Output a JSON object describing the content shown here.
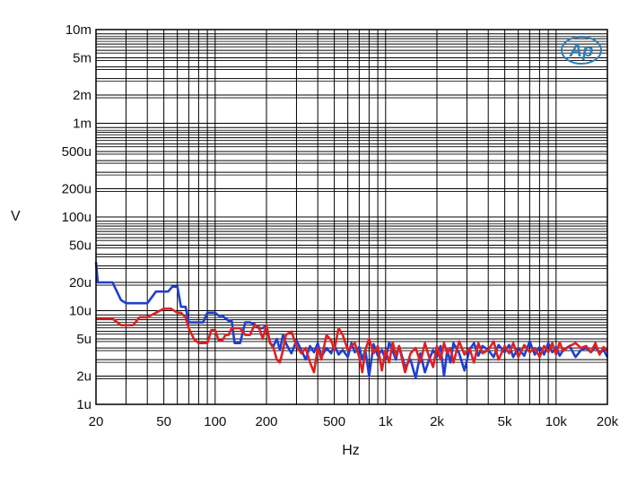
{
  "chart_data": {
    "type": "line",
    "xlabel": "Hz",
    "ylabel": "V",
    "x_scale": "log",
    "y_scale": "log",
    "xlim": [
      20,
      20000
    ],
    "ylim": [
      1e-06,
      0.01
    ],
    "x_tick_labels": [
      "20",
      "50",
      "100",
      "200",
      "500",
      "1k",
      "2k",
      "5k",
      "10k",
      "20k"
    ],
    "x_tick_values": [
      20,
      50,
      100,
      200,
      500,
      1000,
      2000,
      5000,
      10000,
      20000
    ],
    "y_tick_labels": [
      "10m",
      "5m",
      "2m",
      "1m",
      "500u",
      "200u",
      "100u",
      "50u",
      "20u",
      "10u",
      "5u",
      "2u",
      "1u"
    ],
    "y_tick_values": [
      0.01,
      0.005,
      0.002,
      0.001,
      0.0005,
      0.0002,
      0.0001,
      5e-05,
      2e-05,
      1e-05,
      5e-06,
      2e-06,
      1e-06
    ],
    "grid": true,
    "logo_text": "Ap",
    "series": [
      {
        "color": "#1f3fd0",
        "x": [
          20,
          20.5,
          22,
          25,
          28,
          30,
          33,
          36,
          40,
          45,
          50,
          53,
          56,
          60,
          63,
          67,
          70,
          75,
          80,
          85,
          90,
          95,
          100,
          105,
          110,
          120,
          125,
          130,
          140,
          150,
          160,
          170,
          180,
          190,
          200,
          210,
          220,
          230,
          240,
          250,
          260,
          280,
          300,
          320,
          340,
          360,
          380,
          400,
          420,
          450,
          480,
          500,
          530,
          560,
          600,
          630,
          660,
          700,
          730,
          760,
          800,
          850,
          900,
          950,
          1000,
          1050,
          1100,
          1150,
          1200,
          1300,
          1400,
          1500,
          1600,
          1700,
          1800,
          1900,
          2000,
          2100,
          2200,
          2300,
          2400,
          2500,
          2700,
          2900,
          3100,
          3300,
          3500,
          3700,
          4000,
          4300,
          4600,
          5000,
          5300,
          5600,
          6000,
          6500,
          7000,
          7500,
          8000,
          8500,
          9000,
          9500,
          10000,
          10500,
          11000,
          12000,
          13000,
          14000,
          15000,
          16000,
          17000,
          18000,
          19000,
          20000
        ],
        "y": [
          3.3e-05,
          2e-05,
          2e-05,
          2e-05,
          1.3e-05,
          1.2e-05,
          1.2e-05,
          1.2e-05,
          1.2e-05,
          1.6e-05,
          1.6e-05,
          1.6e-05,
          1.8e-05,
          1.8e-05,
          1.1e-05,
          1.1e-05,
          7.5e-06,
          7.5e-06,
          7.5e-06,
          7.5e-06,
          9.5e-06,
          9.5e-06,
          9.5e-06,
          8.8e-06,
          8.8e-06,
          7.8e-06,
          7.8e-06,
          4.5e-06,
          4.5e-06,
          7.5e-06,
          7.5e-06,
          7.2e-06,
          6.5e-06,
          6.5e-06,
          7e-06,
          4.5e-06,
          4.2e-06,
          5e-06,
          3.8e-06,
          5.5e-06,
          4.5e-06,
          3.5e-06,
          4.8e-06,
          3.8e-06,
          3e-06,
          4.2e-06,
          3.6e-06,
          4.5e-06,
          3.2e-06,
          4e-06,
          3.5e-06,
          4.3e-06,
          3.4e-06,
          3.8e-06,
          3.2e-06,
          4.5e-06,
          3.6e-06,
          4.1e-06,
          3e-06,
          3.8e-06,
          2e-06,
          4.4e-06,
          3.3e-06,
          3.8e-06,
          3e-06,
          4.6e-06,
          3.7e-06,
          3e-06,
          4.2e-06,
          2.5e-06,
          3e-06,
          1.9e-06,
          3.5e-06,
          2.2e-06,
          3e-06,
          3.8e-06,
          3.2e-06,
          4.2e-06,
          2e-06,
          3.8e-06,
          2.8e-06,
          4.5e-06,
          3.5e-06,
          2.3e-06,
          3.8e-06,
          4.5e-06,
          3.3e-06,
          4.2e-06,
          3.8e-06,
          3.2e-06,
          4.3e-06,
          3.6e-06,
          4.3e-06,
          3.2e-06,
          4e-06,
          3.3e-06,
          4.7e-06,
          3.4e-06,
          4.1e-06,
          3.4e-06,
          4.5e-06,
          3.6e-06,
          4.1e-06,
          3.3e-06,
          3.8e-06,
          4.2e-06,
          3.2e-06,
          3.8e-06,
          4e-06,
          3.6e-06,
          4.1e-06,
          3.5e-06,
          3.8e-06,
          3.2e-06
        ]
      },
      {
        "color": "#e02020",
        "x": [
          20,
          22,
          25,
          28,
          30,
          33,
          36,
          40,
          45,
          50,
          55,
          60,
          63,
          67,
          70,
          75,
          80,
          85,
          90,
          95,
          100,
          105,
          110,
          115,
          120,
          125,
          130,
          140,
          150,
          160,
          170,
          180,
          190,
          200,
          210,
          220,
          230,
          240,
          250,
          260,
          280,
          300,
          320,
          340,
          360,
          380,
          400,
          420,
          450,
          480,
          500,
          530,
          560,
          600,
          630,
          660,
          700,
          730,
          760,
          800,
          850,
          900,
          950,
          1000,
          1050,
          1100,
          1150,
          1200,
          1300,
          1400,
          1500,
          1600,
          1700,
          1800,
          1900,
          2000,
          2100,
          2200,
          2300,
          2400,
          2500,
          2700,
          2900,
          3100,
          3300,
          3500,
          3700,
          4000,
          4300,
          4600,
          5000,
          5300,
          5600,
          6000,
          6500,
          7000,
          7500,
          8000,
          8500,
          9000,
          9500,
          10000,
          10500,
          11000,
          12000,
          13000,
          14000,
          15000,
          16000,
          17000,
          18000,
          19000,
          20000
        ],
        "y": [
          8.2e-06,
          8.2e-06,
          8.2e-06,
          7e-06,
          7e-06,
          7e-06,
          8.5e-06,
          8.5e-06,
          9.5e-06,
          1.05e-05,
          1.05e-05,
          9.5e-06,
          9.5e-06,
          8.5e-06,
          6.5e-06,
          5e-06,
          4.5e-06,
          4.5e-06,
          4.5e-06,
          6.2e-06,
          6.2e-06,
          4.8e-06,
          4.8e-06,
          5.5e-06,
          5.5e-06,
          6.5e-06,
          6.5e-06,
          6.5e-06,
          5.5e-06,
          5.5e-06,
          7e-06,
          6.8e-06,
          5e-06,
          7e-06,
          4.5e-06,
          4e-06,
          3e-06,
          2.8e-06,
          3.8e-06,
          5.5e-06,
          6e-06,
          4.2e-06,
          3.5e-06,
          4e-06,
          2.8e-06,
          2.2e-06,
          4e-06,
          3e-06,
          5.5e-06,
          4.8e-06,
          3.8e-06,
          6.5e-06,
          5.5e-06,
          3.8e-06,
          4.2e-06,
          4.5e-06,
          3.2e-06,
          2.2e-06,
          3.8e-06,
          5e-06,
          3.5e-06,
          4.2e-06,
          2.3e-06,
          3.8e-06,
          2.8e-06,
          4.6e-06,
          3.3e-06,
          4.2e-06,
          2.2e-06,
          3.5e-06,
          4e-06,
          2.8e-06,
          4.5e-06,
          3.2e-06,
          2.5e-06,
          4.2e-06,
          3e-06,
          4.5e-06,
          3.5e-06,
          4e-06,
          2.8e-06,
          4.7e-06,
          3.4e-06,
          4e-06,
          2.8e-06,
          4.5e-06,
          3.5e-06,
          3.8e-06,
          4.7e-06,
          3e-06,
          4.2e-06,
          3.5e-06,
          4.5e-06,
          3.2e-06,
          4.3e-06,
          3.6e-06,
          4e-06,
          3.2e-06,
          4.2e-06,
          3.6e-06,
          4.5e-06,
          3.4e-06,
          4.6e-06,
          3.7e-06,
          4.2e-06,
          4.5e-06,
          4e-06,
          4.2e-06,
          3.6e-06,
          4.5e-06,
          3.4e-06,
          4.1e-06,
          3.7e-06
        ]
      }
    ]
  }
}
